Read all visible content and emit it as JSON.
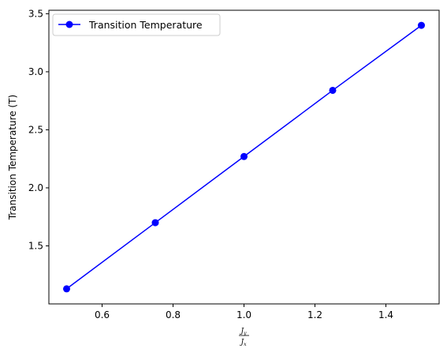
{
  "chart_data": {
    "type": "line",
    "x": [
      0.5,
      0.75,
      1.0,
      1.25,
      1.5
    ],
    "series": [
      {
        "name": "Transition Temperature",
        "values": [
          1.13,
          1.7,
          2.27,
          2.84,
          3.4
        ],
        "color": "#0000ff",
        "marker": "circle"
      }
    ],
    "xlabel_numerator": "J_y",
    "xlabel_denominator": "J_x",
    "ylabel": "Transition Temperature (T)",
    "xlim": [
      0.45,
      1.55
    ],
    "ylim": [
      1.0,
      3.53
    ],
    "xticks": [
      "0.6",
      "0.8",
      "1.0",
      "1.2",
      "1.4"
    ],
    "xtick_values": [
      0.6,
      0.8,
      1.0,
      1.2,
      1.4
    ],
    "yticks": [
      "1.5",
      "2.0",
      "2.5",
      "3.0",
      "3.5"
    ],
    "ytick_values": [
      1.5,
      2.0,
      2.5,
      3.0,
      3.5
    ],
    "grid": false,
    "legend_position": "upper-left"
  }
}
